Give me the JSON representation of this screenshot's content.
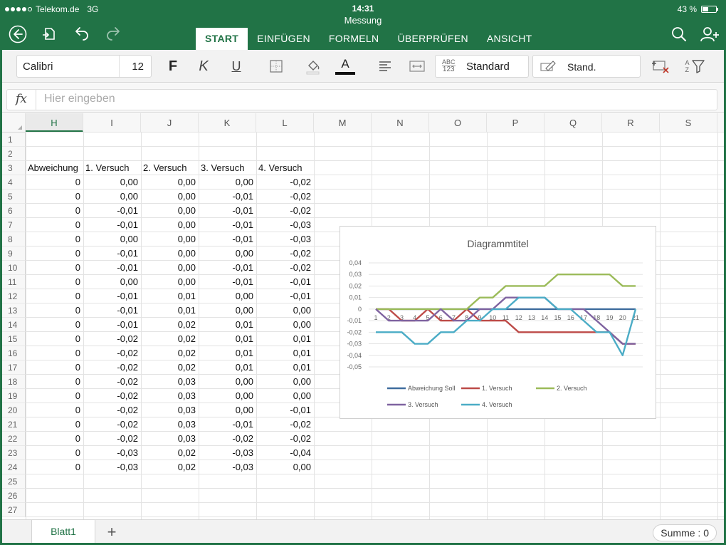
{
  "status": {
    "carrier": "Telekom.de",
    "network": "3G",
    "time": "14:31",
    "battery": "43 %"
  },
  "document": {
    "title": "Messung"
  },
  "tabs": [
    {
      "label": "START",
      "active": true
    },
    {
      "label": "EINFÜGEN"
    },
    {
      "label": "FORMELN"
    },
    {
      "label": "ÜBERPRÜFEN"
    },
    {
      "label": "ANSICHT"
    }
  ],
  "ribbon": {
    "font_name": "Calibri",
    "font_size": "12",
    "bold_label": "F",
    "italic_label": "K",
    "underline_label": "U",
    "font_color_label": "A",
    "number_format_badge_top": "ABC",
    "number_format_badge_bottom": "123",
    "number_format": "Standard",
    "cell_style": "Stand.",
    "sort_label_top": "A",
    "sort_label_bottom": "Z"
  },
  "formula_bar": {
    "fx": "fx",
    "placeholder": "Hier eingeben"
  },
  "columns": [
    "H",
    "I",
    "J",
    "K",
    "L",
    "M",
    "N",
    "O",
    "P",
    "Q",
    "R",
    "S"
  ],
  "rows": [
    "1",
    "2",
    "3",
    "4",
    "5",
    "6",
    "7",
    "8",
    "9",
    "10",
    "11",
    "12",
    "13",
    "14",
    "15",
    "16",
    "17",
    "18",
    "19",
    "20",
    "21",
    "22",
    "23",
    "24",
    "25",
    "26",
    "27"
  ],
  "headers": [
    "Abweichung",
    "1. Versuch",
    "2. Versuch",
    "3. Versuch",
    "4. Versuch"
  ],
  "table_rows": [
    [
      "0",
      "0,00",
      "0,00",
      "0,00",
      "-0,02"
    ],
    [
      "0",
      "0,00",
      "0,00",
      "-0,01",
      "-0,02"
    ],
    [
      "0",
      "-0,01",
      "0,00",
      "-0,01",
      "-0,02"
    ],
    [
      "0",
      "-0,01",
      "0,00",
      "-0,01",
      "-0,03"
    ],
    [
      "0",
      "0,00",
      "0,00",
      "-0,01",
      "-0,03"
    ],
    [
      "0",
      "-0,01",
      "0,00",
      "0,00",
      "-0,02"
    ],
    [
      "0",
      "-0,01",
      "0,00",
      "-0,01",
      "-0,02"
    ],
    [
      "0",
      "0,00",
      "0,00",
      "-0,01",
      "-0,01"
    ],
    [
      "0",
      "-0,01",
      "0,01",
      "0,00",
      "-0,01"
    ],
    [
      "0",
      "-0,01",
      "0,01",
      "0,00",
      "0,00"
    ],
    [
      "0",
      "-0,01",
      "0,02",
      "0,01",
      "0,00"
    ],
    [
      "0",
      "-0,02",
      "0,02",
      "0,01",
      "0,01"
    ],
    [
      "0",
      "-0,02",
      "0,02",
      "0,01",
      "0,01"
    ],
    [
      "0",
      "-0,02",
      "0,02",
      "0,01",
      "0,01"
    ],
    [
      "0",
      "-0,02",
      "0,03",
      "0,00",
      "0,00"
    ],
    [
      "0",
      "-0,02",
      "0,03",
      "0,00",
      "0,00"
    ],
    [
      "0",
      "-0,02",
      "0,03",
      "0,00",
      "-0,01"
    ],
    [
      "0",
      "-0,02",
      "0,03",
      "-0,01",
      "-0,02"
    ],
    [
      "0",
      "-0,02",
      "0,03",
      "-0,02",
      "-0,02"
    ],
    [
      "0",
      "-0,03",
      "0,02",
      "-0,03",
      "-0,04"
    ],
    [
      "0",
      "-0,03",
      "0,02",
      "-0,03",
      "0,00"
    ]
  ],
  "chart_data": {
    "type": "line",
    "title": "Diagrammtitel",
    "x": [
      "1",
      "2",
      "3",
      "4",
      "5",
      "6",
      "7",
      "8",
      "9",
      "10",
      "11",
      "12",
      "13",
      "14",
      "15",
      "16",
      "17",
      "18",
      "19",
      "20",
      "21"
    ],
    "ylim": [
      -0.05,
      0.04
    ],
    "yticks": [
      "0,04",
      "0,03",
      "0,02",
      "0,01",
      "0",
      "-0,01",
      "-0,02",
      "-0,03",
      "-0,04",
      "-0,05"
    ],
    "grid": true,
    "legend_position": "bottom",
    "series": [
      {
        "name": "Abweichung Soll",
        "color": "#3f6d9e",
        "values": [
          0,
          0,
          0,
          0,
          0,
          0,
          0,
          0,
          0,
          0,
          0,
          0,
          0,
          0,
          0,
          0,
          0,
          0,
          0,
          0,
          0
        ]
      },
      {
        "name": "1. Versuch",
        "color": "#bd4b48",
        "values": [
          0,
          0,
          -0.01,
          -0.01,
          0,
          -0.01,
          -0.01,
          0,
          -0.01,
          -0.01,
          -0.01,
          -0.02,
          -0.02,
          -0.02,
          -0.02,
          -0.02,
          -0.02,
          -0.02,
          -0.02,
          -0.03,
          -0.03
        ]
      },
      {
        "name": "2. Versuch",
        "color": "#9bbb59",
        "values": [
          0,
          0,
          0,
          0,
          0,
          0,
          0,
          0,
          0.01,
          0.01,
          0.02,
          0.02,
          0.02,
          0.02,
          0.03,
          0.03,
          0.03,
          0.03,
          0.03,
          0.02,
          0.02
        ]
      },
      {
        "name": "3. Versuch",
        "color": "#7f63a0",
        "values": [
          0,
          -0.01,
          -0.01,
          -0.01,
          -0.01,
          0,
          -0.01,
          -0.01,
          0,
          0,
          0.01,
          0.01,
          0.01,
          0.01,
          0,
          0,
          0,
          -0.01,
          -0.02,
          -0.03,
          -0.03
        ]
      },
      {
        "name": "4. Versuch",
        "color": "#4bacc6",
        "values": [
          -0.02,
          -0.02,
          -0.02,
          -0.03,
          -0.03,
          -0.02,
          -0.02,
          -0.01,
          -0.01,
          0,
          0,
          0.01,
          0.01,
          0.01,
          0,
          0,
          -0.01,
          -0.02,
          -0.02,
          -0.04,
          0
        ]
      }
    ]
  },
  "bottom": {
    "sheet_name": "Blatt1",
    "add_sheet": "+",
    "sum_label": "Summe : 0"
  }
}
